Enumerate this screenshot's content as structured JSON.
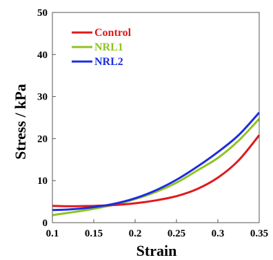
{
  "chart_data": {
    "type": "line",
    "xlabel": "Strain",
    "ylabel": "Stress / kPa",
    "xlim": [
      0.1,
      0.35
    ],
    "ylim": [
      0,
      50
    ],
    "xticks": [
      "0.1",
      "0.15",
      "0.2",
      "0.25",
      "0.3",
      "0.35"
    ],
    "yticks": [
      "0",
      "10",
      "20",
      "30",
      "40",
      "50"
    ],
    "legend_position": "top-left",
    "grid": false,
    "series": [
      {
        "name": "Control",
        "color": "#e0181c",
        "x": [
          0.1,
          0.125,
          0.15,
          0.175,
          0.2,
          0.225,
          0.25,
          0.275,
          0.3,
          0.325,
          0.35
        ],
        "y": [
          4.0,
          3.9,
          4.0,
          4.2,
          4.6,
          5.3,
          6.3,
          8.0,
          10.7,
          14.8,
          20.8
        ]
      },
      {
        "name": "NRL1",
        "color": "#8fc31f",
        "x": [
          0.1,
          0.125,
          0.15,
          0.175,
          0.2,
          0.225,
          0.25,
          0.275,
          0.3,
          0.325,
          0.35
        ],
        "y": [
          1.8,
          2.5,
          3.3,
          4.3,
          5.6,
          7.3,
          9.5,
          12.4,
          15.4,
          19.5,
          24.7
        ]
      },
      {
        "name": "NRL2",
        "color": "#1c2de0",
        "x": [
          0.1,
          0.125,
          0.15,
          0.175,
          0.2,
          0.225,
          0.25,
          0.275,
          0.3,
          0.325,
          0.35
        ],
        "y": [
          3.0,
          3.2,
          3.7,
          4.5,
          5.8,
          7.7,
          10.2,
          13.3,
          16.8,
          20.8,
          26.2
        ]
      }
    ]
  }
}
